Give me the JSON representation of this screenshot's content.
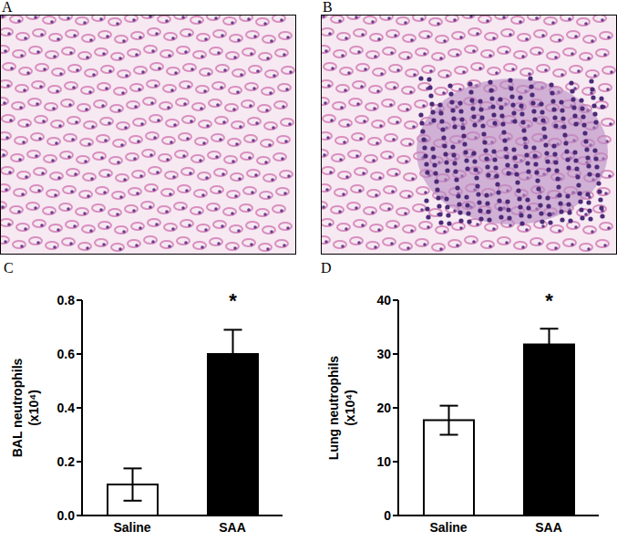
{
  "panel_labels": [
    "A",
    "B",
    "C",
    "D"
  ],
  "chart_data": [
    {
      "type": "bar",
      "y_label_lines": [
        "BAL neutrophils",
        "(x10⁴)"
      ],
      "categories": [
        "Saline",
        "SAA"
      ],
      "values": [
        0.115,
        0.6
      ],
      "errors": [
        0.06,
        0.09
      ],
      "colors": [
        "#ffffff",
        "#000000"
      ],
      "ylim": [
        0,
        0.8
      ],
      "yticks": [
        {
          "value": 0,
          "label": "0.0"
        },
        0.2,
        0.4,
        0.6,
        0.8
      ],
      "annotations": [
        {
          "category": "SAA",
          "text": "*"
        }
      ]
    },
    {
      "type": "bar",
      "y_label_lines": [
        "Lung neutrophils",
        "(x10⁴)"
      ],
      "categories": [
        "Saline",
        "SAA"
      ],
      "values": [
        17.7,
        31.8
      ],
      "errors": [
        2.7,
        2.9
      ],
      "colors": [
        "#ffffff",
        "#000000"
      ],
      "ylim": [
        0,
        40
      ],
      "yticks": [
        0,
        10,
        20,
        30,
        40
      ],
      "annotations": [
        {
          "category": "SAA",
          "text": "*"
        }
      ]
    }
  ]
}
